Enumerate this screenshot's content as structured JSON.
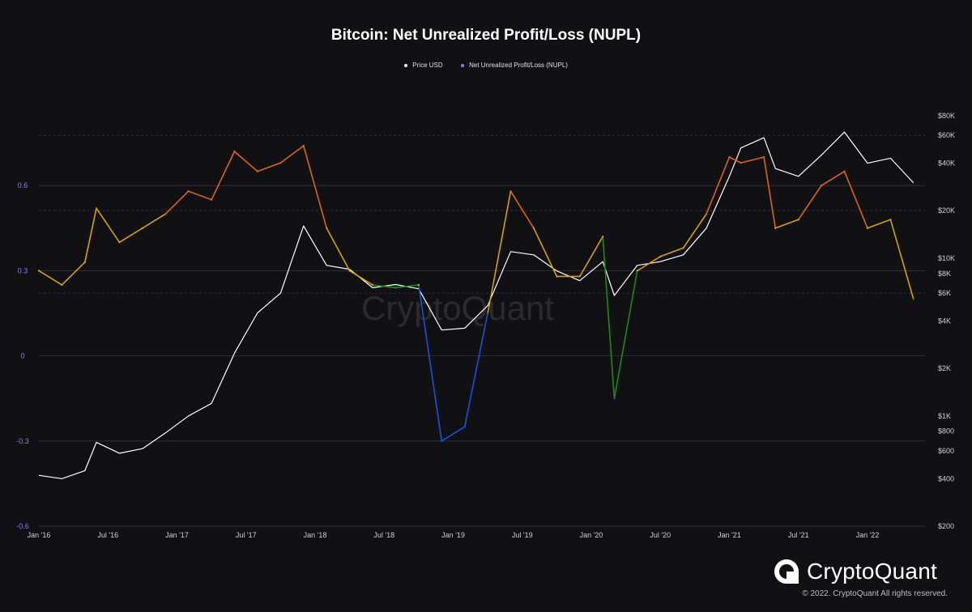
{
  "chart_data": {
    "type": "line",
    "title": "Bitcoin: Net Unrealized Profit/Loss (NUPL)",
    "legend_position": "top-center",
    "grid": true,
    "series": [
      {
        "name": "Price USD",
        "axis": "right",
        "color": "#ffffff",
        "x": [
          "2016-01",
          "2016-03",
          "2016-05",
          "2016-06",
          "2016-08",
          "2016-10",
          "2016-12",
          "2017-02",
          "2017-04",
          "2017-06",
          "2017-08",
          "2017-10",
          "2017-12",
          "2018-02",
          "2018-04",
          "2018-06",
          "2018-08",
          "2018-10",
          "2018-12",
          "2019-02",
          "2019-04",
          "2019-06",
          "2019-08",
          "2019-10",
          "2019-12",
          "2020-02",
          "2020-03",
          "2020-05",
          "2020-07",
          "2020-09",
          "2020-11",
          "2021-01",
          "2021-02",
          "2021-04",
          "2021-05",
          "2021-07",
          "2021-09",
          "2021-11",
          "2022-01",
          "2022-03",
          "2022-05"
        ],
        "values": [
          420,
          400,
          450,
          680,
          580,
          620,
          780,
          1000,
          1200,
          2500,
          4500,
          6000,
          16000,
          9000,
          8500,
          6500,
          6800,
          6400,
          3500,
          3600,
          5000,
          11000,
          10500,
          8300,
          7200,
          9500,
          5800,
          9000,
          9500,
          10500,
          15500,
          33000,
          50000,
          58000,
          37000,
          33000,
          45000,
          63000,
          40000,
          43000,
          30000
        ]
      },
      {
        "name": "Net Unrealized Profit/Loss (NUPL)",
        "axis": "left",
        "color": "#8a7cff",
        "x": [
          "2016-01",
          "2016-03",
          "2016-05",
          "2016-06",
          "2016-08",
          "2016-10",
          "2016-12",
          "2017-02",
          "2017-04",
          "2017-06",
          "2017-08",
          "2017-10",
          "2017-12",
          "2018-02",
          "2018-04",
          "2018-06",
          "2018-08",
          "2018-10",
          "2018-12",
          "2019-02",
          "2019-04",
          "2019-06",
          "2019-08",
          "2019-10",
          "2019-12",
          "2020-02",
          "2020-03",
          "2020-05",
          "2020-07",
          "2020-09",
          "2020-11",
          "2021-01",
          "2021-02",
          "2021-04",
          "2021-05",
          "2021-07",
          "2021-09",
          "2021-11",
          "2022-01",
          "2022-03",
          "2022-05"
        ],
        "values": [
          0.3,
          0.25,
          0.33,
          0.52,
          0.4,
          0.45,
          0.5,
          0.58,
          0.55,
          0.72,
          0.65,
          0.68,
          0.74,
          0.45,
          0.3,
          0.25,
          0.24,
          0.25,
          -0.3,
          -0.25,
          0.15,
          0.58,
          0.45,
          0.28,
          0.28,
          0.42,
          -0.15,
          0.3,
          0.35,
          0.38,
          0.5,
          0.7,
          0.68,
          0.7,
          0.45,
          0.48,
          0.6,
          0.65,
          0.45,
          0.48,
          0.2
        ]
      }
    ],
    "nupl_color_bands": [
      {
        "min": -1,
        "max": 0,
        "color": "#1f4fd8"
      },
      {
        "min": 0,
        "max": 0.25,
        "color": "#1e8a1e"
      },
      {
        "min": 0.25,
        "max": 0.5,
        "color": "#d4a017"
      },
      {
        "min": 0.5,
        "max": 0.75,
        "color": "#d9661b"
      },
      {
        "min": 0.75,
        "max": 1,
        "color": "#c41e2a"
      }
    ],
    "left_axis": {
      "ylim": [
        -0.6,
        0.9
      ],
      "ticks": [
        {
          "value": 0.6,
          "label": "0.6"
        },
        {
          "value": 0.3,
          "label": "0.3"
        },
        {
          "value": 0,
          "label": "0"
        },
        {
          "value": -0.3,
          "label": "-0.3"
        },
        {
          "value": -0.6,
          "label": "-0.6"
        }
      ]
    },
    "right_axis": {
      "scale": "log",
      "ylim": [
        200,
        100000
      ],
      "ticks": [
        {
          "value": 80000,
          "label": "$80K"
        },
        {
          "value": 60000,
          "label": "$60K"
        },
        {
          "value": 40000,
          "label": "$40K"
        },
        {
          "value": 20000,
          "label": "$20K"
        },
        {
          "value": 10000,
          "label": "$10K"
        },
        {
          "value": 8000,
          "label": "$8K"
        },
        {
          "value": 6000,
          "label": "$6K"
        },
        {
          "value": 4000,
          "label": "$4K"
        },
        {
          "value": 2000,
          "label": "$2K"
        },
        {
          "value": 1000,
          "label": "$1K"
        },
        {
          "value": 800,
          "label": "$800"
        },
        {
          "value": 600,
          "label": "$600"
        },
        {
          "value": 400,
          "label": "$400"
        },
        {
          "value": 200,
          "label": "$200"
        }
      ]
    },
    "x_axis": {
      "range": [
        "2016-01",
        "2022-06"
      ],
      "ticks": [
        {
          "value": "2016-01",
          "label": "Jan '16"
        },
        {
          "value": "2016-07",
          "label": "Jul '16"
        },
        {
          "value": "2017-01",
          "label": "Jan '17"
        },
        {
          "value": "2017-07",
          "label": "Jul '17"
        },
        {
          "value": "2018-01",
          "label": "Jan '18"
        },
        {
          "value": "2018-07",
          "label": "Jul '18"
        },
        {
          "value": "2019-01",
          "label": "Jan '19"
        },
        {
          "value": "2019-07",
          "label": "Jul '19"
        },
        {
          "value": "2020-01",
          "label": "Jan '20"
        },
        {
          "value": "2020-07",
          "label": "Jul '20"
        },
        {
          "value": "2021-01",
          "label": "Jan '21"
        },
        {
          "value": "2021-07",
          "label": "Jul '21"
        },
        {
          "value": "2022-01",
          "label": "Jan '22"
        }
      ]
    },
    "watermark": "CryptoQuant"
  },
  "brand": {
    "name": "CryptoQuant"
  },
  "footer": {
    "copyright": "© 2022. CryptoQuant All rights reserved."
  }
}
